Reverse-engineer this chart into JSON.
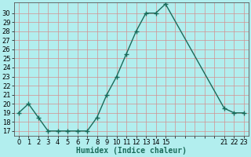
{
  "x": [
    0,
    1,
    2,
    3,
    4,
    5,
    6,
    7,
    8,
    9,
    10,
    11,
    12,
    13,
    14,
    15,
    21,
    22,
    23
  ],
  "y": [
    19,
    20,
    18.5,
    17,
    17,
    17,
    17,
    17,
    18.5,
    21,
    23,
    25.5,
    28,
    30,
    30,
    31,
    19.5,
    19,
    19
  ],
  "xlabel": "Humidex (Indice chaleur)",
  "xticks_all": [
    0,
    1,
    2,
    3,
    4,
    5,
    6,
    7,
    8,
    9,
    10,
    11,
    12,
    13,
    14,
    15,
    16,
    17,
    18,
    19,
    20,
    21,
    22,
    23
  ],
  "xtick_labels": [
    "0",
    "1",
    "2",
    "3",
    "4",
    "5",
    "6",
    "7",
    "8",
    "9",
    "10",
    "11",
    "12",
    "13",
    "14",
    "15",
    "",
    "",
    "",
    "",
    "",
    "21",
    "22",
    "23"
  ],
  "yticks": [
    17,
    18,
    19,
    20,
    21,
    22,
    23,
    24,
    25,
    26,
    27,
    28,
    29,
    30
  ],
  "ylim": [
    16.5,
    31.2
  ],
  "xlim": [
    -0.5,
    23.5
  ],
  "line_color": "#1a6b5a",
  "marker": "+",
  "marker_color": "#1a6b5a",
  "bg_color": "#b2eeee",
  "grid_color": "#d49090",
  "label_fontsize": 7,
  "tick_fontsize": 6
}
